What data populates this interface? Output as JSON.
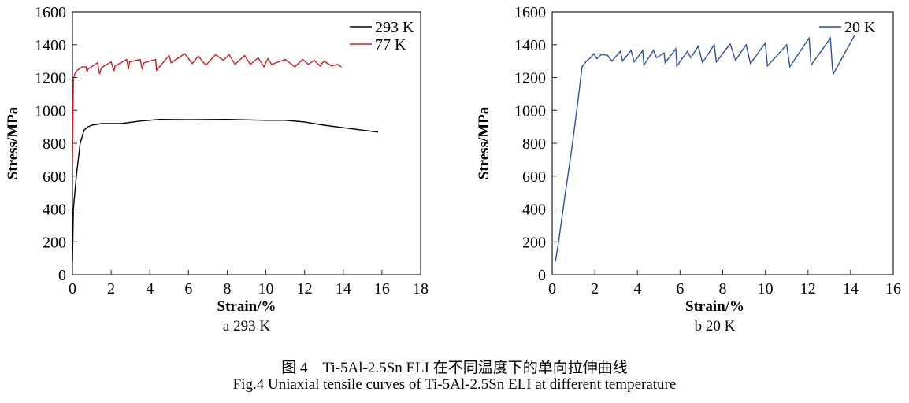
{
  "chart_data": [
    {
      "type": "line",
      "panel_label": "a  293 K",
      "xlabel": "Strain/%",
      "ylabel": "Stress/MPa",
      "xlim": [
        0,
        18
      ],
      "ylim": [
        0,
        1600
      ],
      "xticks": [
        0,
        2,
        4,
        6,
        8,
        10,
        12,
        14,
        16,
        18
      ],
      "yticks": [
        0,
        200,
        400,
        600,
        800,
        1000,
        1200,
        1400,
        1600
      ],
      "grid": false,
      "legend": "top-right",
      "series": [
        {
          "name": "293 K",
          "color": "#000000",
          "x": [
            0,
            0.05,
            0.2,
            0.4,
            0.6,
            0.8,
            1,
            1.5,
            2.5,
            3.5,
            4.5,
            6,
            8,
            10,
            11,
            12,
            13,
            14,
            15,
            15.8
          ],
          "y": [
            80,
            400,
            600,
            800,
            880,
            900,
            910,
            920,
            920,
            935,
            945,
            943,
            945,
            940,
            940,
            930,
            910,
            895,
            880,
            868
          ]
        },
        {
          "name": "77 K",
          "color": "#d7191c",
          "x": [
            0,
            0.05,
            0.2,
            0.5,
            0.7,
            0.75,
            0.8,
            1.3,
            1.4,
            1.5,
            2.0,
            2.15,
            2.2,
            2.8,
            2.9,
            2.95,
            3.5,
            3.6,
            3.7,
            4.3,
            4.35,
            5.0,
            5.1,
            5.8,
            6.2,
            6.5,
            6.9,
            7.4,
            7.8,
            8.1,
            8.4,
            8.9,
            9.2,
            9.6,
            9.9,
            10.1,
            10.3,
            11.0,
            11.5,
            11.9,
            12.2,
            12.5,
            12.8,
            13.0,
            13.4,
            13.7,
            13.9
          ],
          "y": [
            680,
            1200,
            1240,
            1265,
            1265,
            1235,
            1250,
            1290,
            1220,
            1260,
            1295,
            1240,
            1270,
            1310,
            1250,
            1295,
            1310,
            1255,
            1290,
            1310,
            1245,
            1335,
            1290,
            1345,
            1285,
            1330,
            1275,
            1340,
            1305,
            1340,
            1280,
            1335,
            1280,
            1320,
            1265,
            1315,
            1280,
            1310,
            1265,
            1310,
            1280,
            1305,
            1270,
            1300,
            1270,
            1280,
            1265
          ]
        }
      ]
    },
    {
      "type": "line",
      "panel_label": "b  20 K",
      "xlabel": "Strain/%",
      "ylabel": "Stress/MPa",
      "xlim": [
        0,
        16
      ],
      "ylim": [
        0,
        1600
      ],
      "xticks": [
        0,
        2,
        4,
        6,
        8,
        10,
        12,
        14,
        16
      ],
      "yticks": [
        0,
        200,
        400,
        600,
        800,
        1000,
        1200,
        1400,
        1600
      ],
      "grid": false,
      "legend": "top-right",
      "series": [
        {
          "name": "20 K",
          "color": "#2b4f9e",
          "x": [
            0.15,
            0.3,
            0.6,
            0.9,
            1.2,
            1.4,
            1.6,
            1.8,
            1.95,
            2.1,
            2.3,
            2.6,
            2.8,
            3.2,
            3.3,
            3.7,
            3.85,
            4.25,
            4.3,
            4.75,
            4.9,
            5.25,
            5.3,
            5.8,
            5.85,
            6.35,
            6.5,
            6.85,
            7.05,
            7.6,
            7.7,
            8.35,
            8.6,
            9.1,
            9.3,
            10.0,
            10.1,
            11.0,
            11.15,
            12.05,
            12.15,
            13.05,
            13.15,
            13.2,
            14.2
          ],
          "y": [
            80,
            200,
            480,
            750,
            1050,
            1265,
            1300,
            1320,
            1345,
            1315,
            1340,
            1335,
            1300,
            1360,
            1300,
            1365,
            1295,
            1365,
            1275,
            1365,
            1320,
            1350,
            1290,
            1375,
            1270,
            1360,
            1320,
            1390,
            1290,
            1400,
            1295,
            1405,
            1305,
            1400,
            1285,
            1410,
            1270,
            1400,
            1265,
            1440,
            1275,
            1440,
            1250,
            1225,
            1460
          ]
        }
      ]
    }
  ],
  "caption": {
    "zh": "图 4　Ti-5Al-2.5Sn ELI 在不同温度下的单向拉伸曲线",
    "en": "Fig.4 Uniaxial tensile curves of Ti-5Al-2.5Sn ELI at different temperature"
  }
}
